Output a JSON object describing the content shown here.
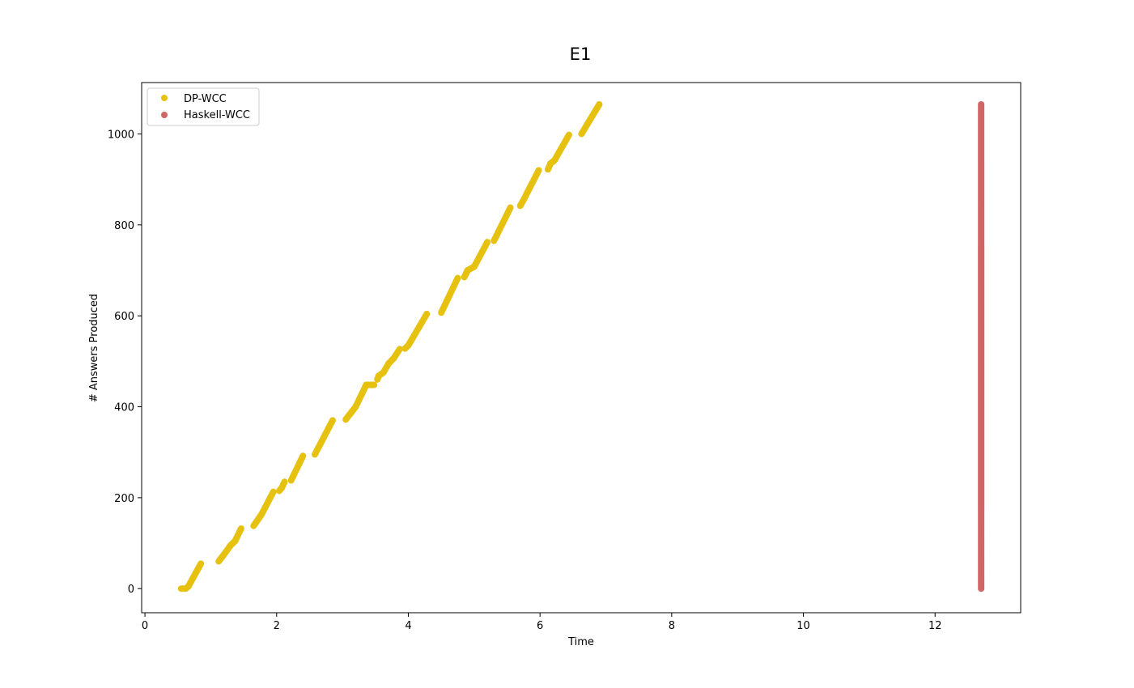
{
  "chart_data": {
    "type": "scatter",
    "title": "E1",
    "xlabel": "Time",
    "ylabel": "# Answers Produced",
    "xlim": [
      -0.05,
      13.3
    ],
    "ylim": [
      -53,
      1113
    ],
    "xticks": [
      0,
      2,
      4,
      6,
      8,
      10,
      12
    ],
    "yticks": [
      0,
      200,
      400,
      600,
      800,
      1000
    ],
    "legend_position": "top-left",
    "series": [
      {
        "name": "DP-WCC",
        "color": "#e6c10f",
        "segments": [
          [
            [
              0.55,
              0
            ],
            [
              0.58,
              0
            ]
          ],
          [
            [
              0.62,
              0
            ],
            [
              0.66,
              5
            ],
            [
              0.85,
              55
            ]
          ],
          [
            [
              1.12,
              60
            ],
            [
              1.2,
              75
            ],
            [
              1.3,
              95
            ],
            [
              1.37,
              105
            ],
            [
              1.46,
              132
            ]
          ],
          [
            [
              1.65,
              138
            ],
            [
              1.77,
              163
            ],
            [
              1.95,
              213
            ]
          ],
          [
            [
              2.04,
              215
            ],
            [
              2.08,
              222
            ],
            [
              2.12,
              235
            ]
          ],
          [
            [
              2.22,
              238
            ],
            [
              2.4,
              292
            ]
          ],
          [
            [
              2.58,
              295
            ],
            [
              2.85,
              370
            ]
          ],
          [
            [
              3.05,
              372
            ],
            [
              3.12,
              385
            ],
            [
              3.2,
              400
            ],
            [
              3.36,
              448
            ],
            [
              3.48,
              448
            ]
          ],
          [
            [
              3.53,
              460
            ],
            [
              3.55,
              468
            ],
            [
              3.62,
              475
            ],
            [
              3.7,
              495
            ],
            [
              3.78,
              507
            ],
            [
              3.87,
              527
            ]
          ],
          [
            [
              3.95,
              528
            ],
            [
              4.0,
              535
            ],
            [
              4.28,
              604
            ]
          ],
          [
            [
              4.5,
              607
            ],
            [
              4.75,
              683
            ]
          ],
          [
            [
              4.85,
              685
            ],
            [
              4.9,
              700
            ],
            [
              5.0,
              708
            ],
            [
              5.2,
              762
            ]
          ],
          [
            [
              5.3,
              765
            ],
            [
              5.55,
              838
            ]
          ],
          [
            [
              5.7,
              842
            ],
            [
              5.75,
              855
            ],
            [
              5.98,
              920
            ]
          ],
          [
            [
              6.12,
              922
            ],
            [
              6.16,
              935
            ],
            [
              6.22,
              942
            ],
            [
              6.44,
              998
            ]
          ],
          [
            [
              6.63,
              1000
            ],
            [
              6.9,
              1065
            ]
          ]
        ]
      },
      {
        "name": "Haskell-WCC",
        "color": "#d16666",
        "segments": [
          [
            [
              12.7,
              0
            ],
            [
              12.7,
              1065
            ]
          ]
        ]
      }
    ]
  }
}
